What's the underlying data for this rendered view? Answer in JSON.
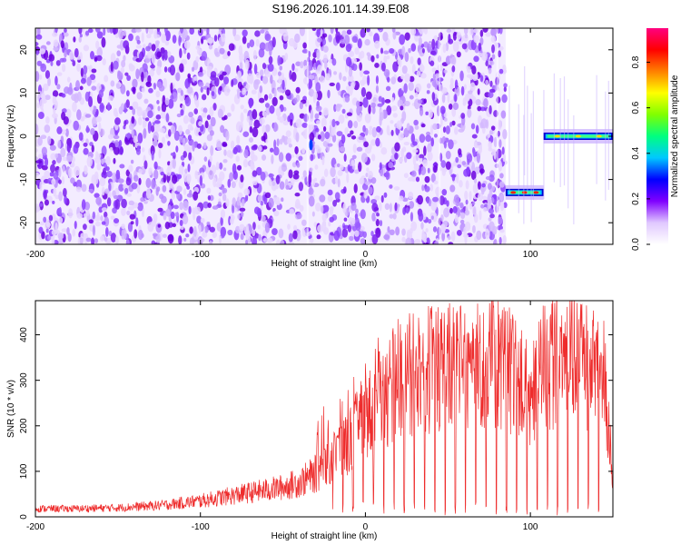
{
  "title": "S196.2026.101.14.39.E08",
  "chart_data": [
    {
      "type": "heatmap",
      "title": "S196.2026.101.14.39.E08",
      "xlabel": "Height of straight line (km)",
      "ylabel": "Frequency (Hz)",
      "xlim": [
        -200,
        150
      ],
      "ylim": [
        -25,
        25
      ],
      "x_ticks": [
        -200,
        -100,
        0,
        100
      ],
      "y_ticks": [
        -20,
        -10,
        0,
        10,
        20
      ],
      "noise_region": {
        "x": [
          -200,
          85
        ],
        "y": [
          -25,
          25
        ],
        "level": "low (0.1-0.3)"
      },
      "features": [
        {
          "label": "tone segment 1",
          "x": [
            85,
            108
          ],
          "y_center": -13,
          "peak_amplitude": 0.95
        },
        {
          "label": "tone segment 2",
          "x": [
            108,
            150
          ],
          "y_center": 0,
          "peak_amplitude": 0.9
        }
      ],
      "colorbar": {
        "label": "Normalized spectral amplitude",
        "range": [
          0.0,
          0.95
        ],
        "ticks": [
          "0.0",
          "0.2",
          "0.4",
          "0.6",
          "0.8"
        ],
        "colors": [
          "#ffffff",
          "#e0c8ff",
          "#8000ff",
          "#0000ff",
          "#00c8ff",
          "#00ff80",
          "#80ff00",
          "#ffff00",
          "#ff8000",
          "#ff0000",
          "#ff0080"
        ]
      }
    },
    {
      "type": "line",
      "xlabel": "Height of straight line (km)",
      "ylabel": "SNR (10 * v/v)",
      "xlim": [
        -200,
        150
      ],
      "ylim": [
        0,
        475
      ],
      "x_ticks": [
        -200,
        -100,
        0,
        100
      ],
      "y_ticks": [
        0,
        100,
        200,
        300,
        400
      ],
      "series": [
        {
          "name": "SNR",
          "color": "#ee2c2c",
          "x": [
            -200,
            -175,
            -150,
            -125,
            -100,
            -75,
            -50,
            -40,
            -30,
            -20,
            -10,
            0,
            10,
            20,
            30,
            40,
            50,
            60,
            70,
            80,
            90,
            100,
            110,
            120,
            130,
            140,
            145,
            148,
            150
          ],
          "values": [
            18,
            18,
            20,
            25,
            35,
            50,
            65,
            75,
            95,
            125,
            170,
            215,
            265,
            300,
            315,
            325,
            330,
            330,
            335,
            340,
            320,
            245,
            345,
            345,
            340,
            330,
            300,
            150,
            50
          ],
          "spikes_max": 470,
          "dropout_min": 3
        }
      ]
    }
  ]
}
